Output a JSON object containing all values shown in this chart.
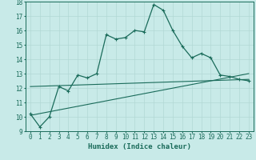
{
  "x": [
    0,
    1,
    2,
    3,
    4,
    5,
    6,
    7,
    8,
    9,
    10,
    11,
    12,
    13,
    14,
    15,
    16,
    17,
    18,
    19,
    20,
    21,
    22,
    23
  ],
  "line1": [
    10.2,
    9.3,
    10.0,
    12.1,
    11.8,
    12.9,
    12.7,
    13.0,
    15.7,
    15.4,
    15.5,
    16.0,
    15.9,
    17.8,
    17.4,
    16.0,
    14.9,
    14.1,
    14.4,
    14.1,
    12.9,
    12.8,
    12.6,
    12.5
  ],
  "line2_pts": [
    [
      0,
      12.1
    ],
    [
      23,
      12.6
    ]
  ],
  "line3_pts": [
    [
      0,
      10.1
    ],
    [
      23,
      13.0
    ]
  ],
  "line_color": "#1a6b5a",
  "bg_color": "#c8eae8",
  "grid_color": "#b2d8d4",
  "xlabel": "Humidex (Indice chaleur)",
  "ylim": [
    9,
    18
  ],
  "xlim": [
    -0.5,
    23.5
  ],
  "yticks": [
    9,
    10,
    11,
    12,
    13,
    14,
    15,
    16,
    17,
    18
  ],
  "xticks": [
    0,
    1,
    2,
    3,
    4,
    5,
    6,
    7,
    8,
    9,
    10,
    11,
    12,
    13,
    14,
    15,
    16,
    17,
    18,
    19,
    20,
    21,
    22,
    23
  ],
  "tick_fontsize": 5.5,
  "xlabel_fontsize": 6.5
}
